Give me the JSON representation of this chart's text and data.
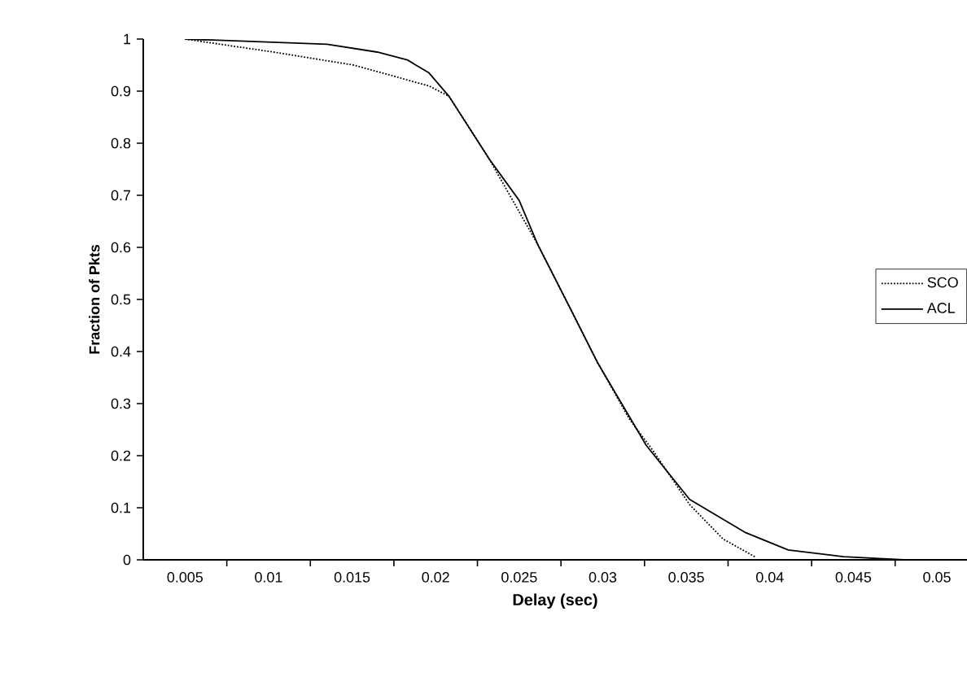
{
  "chart_data": {
    "type": "line",
    "xlabel": "Delay (sec)",
    "ylabel": "Fraction of Pkts",
    "xlim": [
      0.0025,
      0.0518
    ],
    "ylim": [
      0,
      1
    ],
    "xticks": [
      0.005,
      {
        "value": 0.0075,
        "label": null
      },
      0.01,
      {
        "value": 0.0125,
        "label": null
      },
      0.015,
      {
        "value": 0.0175,
        "label": null
      },
      0.02,
      {
        "value": 0.0225,
        "label": null
      },
      0.025,
      {
        "value": 0.0275,
        "label": null
      },
      0.03,
      {
        "value": 0.0325,
        "label": null
      },
      0.035,
      {
        "value": 0.0375,
        "label": null
      },
      0.04,
      {
        "value": 0.0425,
        "label": null
      },
      0.045,
      {
        "value": 0.0475,
        "label": null
      },
      0.05
    ],
    "yticks": [
      0,
      0.1,
      0.2,
      0.3,
      0.4,
      0.5,
      0.6,
      0.7,
      0.8,
      0.9,
      1
    ],
    "legend": "right",
    "grid": false,
    "marker": "none",
    "series": [
      {
        "name": "SCO",
        "color": "#000000",
        "line_style": "dotted",
        "x": [
          0.005,
          0.0103,
          0.0151,
          0.0196,
          0.0208,
          0.0232,
          0.0261,
          0.0281,
          0.0297,
          0.0316,
          0.033,
          0.0352,
          0.0372,
          0.0391
        ],
        "values": [
          1.0,
          0.975,
          0.95,
          0.91,
          0.89,
          0.77,
          0.606,
          0.48,
          0.378,
          0.27,
          0.21,
          0.106,
          0.04,
          0.006
        ]
      },
      {
        "name": "ACL",
        "color": "#000000",
        "line_style": "solid",
        "x": [
          0.005,
          0.0135,
          0.0165,
          0.0183,
          0.0196,
          0.0208,
          0.0232,
          0.025,
          0.0261,
          0.0281,
          0.0297,
          0.0326,
          0.0352,
          0.0385,
          0.0411,
          0.0444,
          0.048,
          0.0518
        ],
        "values": [
          1.0,
          0.99,
          0.975,
          0.96,
          0.935,
          0.89,
          0.77,
          0.69,
          0.606,
          0.48,
          0.378,
          0.22,
          0.116,
          0.053,
          0.019,
          0.006,
          0.0,
          0.0
        ]
      }
    ]
  }
}
